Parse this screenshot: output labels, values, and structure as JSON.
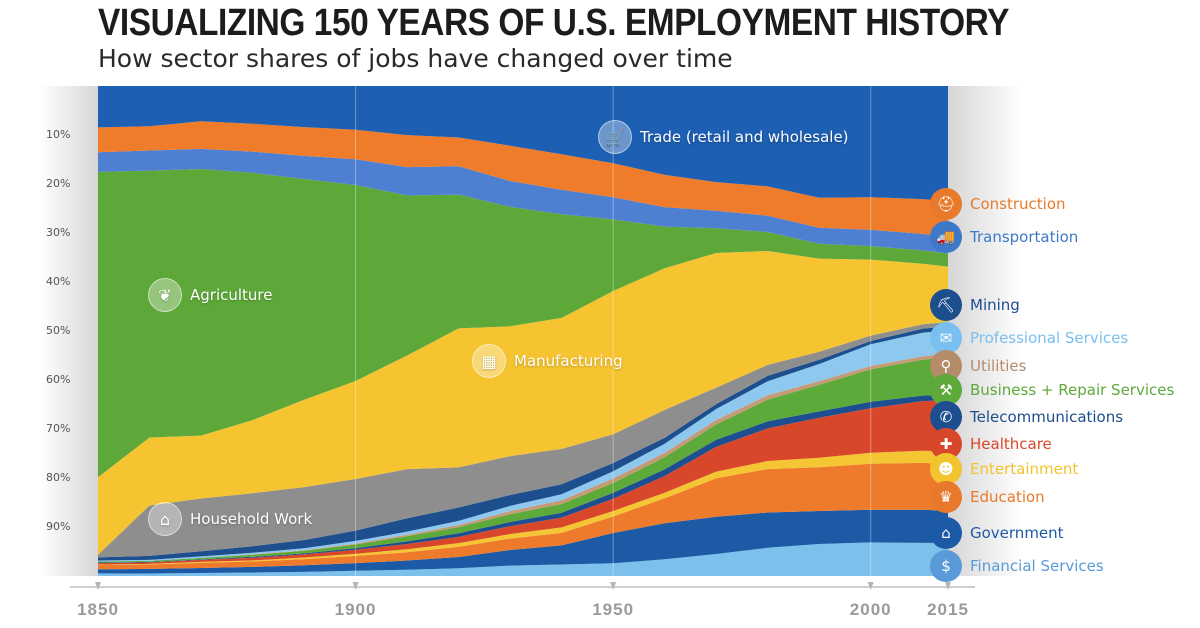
{
  "header": {
    "title": "VISUALIZING 150 YEARS OF U.S. EMPLOYMENT HISTORY",
    "subtitle": "How sector shares of jobs have changed over time"
  },
  "chart_data": {
    "type": "area",
    "stacked": "100%",
    "x": [
      1850,
      1860,
      1870,
      1880,
      1890,
      1900,
      1910,
      1920,
      1930,
      1940,
      1950,
      1960,
      1970,
      1980,
      1990,
      2000,
      2010,
      2015
    ],
    "x_tick_labels": [
      "1850",
      "1900",
      "1950",
      "2000",
      "2015"
    ],
    "y_tick_labels": [
      "10%",
      "20%",
      "30%",
      "40%",
      "50%",
      "60%",
      "70%",
      "80%",
      "90%"
    ],
    "ylim": [
      0,
      100
    ],
    "grid": false,
    "legend_position": "right",
    "series": [
      {
        "name": "Financial Services",
        "color": "#7cc0ec",
        "values": [
          0.5,
          0.5,
          0.6,
          0.7,
          0.8,
          1.0,
          1.2,
          1.5,
          2.0,
          2.1,
          2.3,
          3.0,
          4.0,
          5.2,
          6.0,
          6.2,
          6.0,
          6.0
        ]
      },
      {
        "name": "Government",
        "color": "#1d5aa6",
        "values": [
          0.8,
          0.9,
          1.0,
          1.1,
          1.3,
          1.5,
          1.8,
          2.2,
          3.0,
          3.5,
          5.5,
          6.5,
          6.8,
          6.5,
          6.2,
          6.0,
          6.0,
          5.8
        ]
      },
      {
        "name": "Education",
        "color": "#ee7b2c",
        "values": [
          0.8,
          0.9,
          1.0,
          1.1,
          1.2,
          1.4,
          1.6,
          2.0,
          2.2,
          2.3,
          3.0,
          4.5,
          7.0,
          8.0,
          8.2,
          8.5,
          8.5,
          8.5
        ]
      },
      {
        "name": "Entertainment",
        "color": "#f5c634",
        "values": [
          0.1,
          0.1,
          0.2,
          0.2,
          0.3,
          0.4,
          0.6,
          0.7,
          0.9,
          1.0,
          1.0,
          1.0,
          1.2,
          1.5,
          1.8,
          2.0,
          2.2,
          2.3
        ]
      },
      {
        "name": "Healthcare",
        "color": "#d9472b",
        "values": [
          0.3,
          0.3,
          0.4,
          0.5,
          0.6,
          0.8,
          1.0,
          1.2,
          1.5,
          1.8,
          2.2,
          3.0,
          4.5,
          6.0,
          7.5,
          8.2,
          9.0,
          9.2
        ]
      },
      {
        "name": "Telecommunications",
        "color": "#1d4e8f",
        "values": [
          0.1,
          0.1,
          0.1,
          0.2,
          0.2,
          0.3,
          0.5,
          0.7,
          0.8,
          0.9,
          1.1,
          1.2,
          1.3,
          1.3,
          1.2,
          1.2,
          1.0,
          1.0
        ]
      },
      {
        "name": "Business + Repair Services",
        "color": "#5da93a",
        "values": [
          0.2,
          0.2,
          0.3,
          0.4,
          0.5,
          0.7,
          1.0,
          1.2,
          1.5,
          1.6,
          1.8,
          2.2,
          2.8,
          4.0,
          5.0,
          6.0,
          6.5,
          6.8
        ]
      },
      {
        "name": "Utilities",
        "color": "#c69a76",
        "values": [
          0.0,
          0.0,
          0.0,
          0.1,
          0.1,
          0.2,
          0.3,
          0.4,
          0.6,
          0.7,
          0.8,
          0.8,
          0.8,
          0.8,
          0.7,
          0.6,
          0.6,
          0.6
        ]
      },
      {
        "name": "Professional Services",
        "color": "#8fc8ef",
        "values": [
          0.2,
          0.2,
          0.3,
          0.3,
          0.4,
          0.5,
          0.6,
          0.8,
          1.0,
          1.1,
          1.3,
          1.6,
          2.0,
          2.6,
          3.2,
          4.0,
          4.3,
          4.3
        ]
      },
      {
        "name": "Mining",
        "color": "#1d4f8f",
        "values": [
          0.6,
          0.8,
          1.0,
          1.3,
          1.6,
          2.0,
          2.6,
          2.6,
          2.1,
          1.8,
          1.5,
          1.1,
          0.9,
          1.0,
          0.8,
          0.6,
          0.7,
          0.7
        ]
      },
      {
        "name": "Household Work",
        "color": "#8e8e8e",
        "values": [
          0.5,
          10.0,
          10.5,
          10.5,
          10.3,
          10.0,
          9.5,
          7.8,
          7.5,
          6.5,
          5.2,
          5.0,
          3.0,
          2.0,
          1.5,
          1.0,
          0.8,
          0.8
        ]
      },
      {
        "name": "Manufacturing",
        "color": "#f6c431",
        "values": [
          15.0,
          13.5,
          12.5,
          14.5,
          17.0,
          19.0,
          22.0,
          27.0,
          25.0,
          24.0,
          26.0,
          25.5,
          24.5,
          21.0,
          17.5,
          14.0,
          11.0,
          10.0
        ]
      },
      {
        "name": "Agriculture",
        "color": "#5ea83a",
        "values": [
          59.0,
          53.0,
          53.0,
          49.0,
          43.0,
          38.0,
          31.0,
          26.0,
          23.0,
          19.0,
          13.0,
          7.5,
          4.5,
          3.5,
          2.8,
          2.5,
          2.4,
          2.4
        ]
      },
      {
        "name": "Transportation",
        "color": "#4f7fd1",
        "values": [
          3.8,
          4.0,
          4.0,
          4.2,
          4.5,
          5.0,
          5.5,
          5.5,
          5.0,
          4.5,
          4.0,
          3.5,
          3.2,
          3.0,
          3.0,
          3.0,
          3.0,
          3.0
        ]
      },
      {
        "name": "Construction",
        "color": "#ef7c2a",
        "values": [
          4.8,
          4.8,
          5.5,
          5.5,
          5.6,
          5.7,
          6.2,
          5.6,
          6.8,
          6.5,
          6.2,
          5.8,
          5.2,
          5.4,
          5.6,
          6.0,
          6.3,
          6.5
        ]
      },
      {
        "name": "Trade (retail and wholesale)",
        "color": "#1d5fb3",
        "values": [
          8.0,
          8.0,
          7.0,
          7.5,
          8.0,
          8.5,
          9.5,
          10.0,
          11.5,
          12.5,
          14.0,
          16.0,
          17.5,
          18.5,
          21.0,
          20.5,
          20.5,
          20.8
        ]
      }
    ]
  },
  "chart_labels": {
    "trade": "Trade (retail and wholesale)",
    "agriculture": "Agriculture",
    "manufacturing": "Manufacturing",
    "household": "Household Work"
  },
  "legend": [
    {
      "label": "Construction",
      "color": "#e87b2b",
      "icon": "construction-icon",
      "glyph": "⛑"
    },
    {
      "label": "Transportation",
      "color": "#3e78c9",
      "icon": "transportation-icon",
      "glyph": "🚚"
    },
    {
      "label": "Mining",
      "color": "#1d4f8f",
      "icon": "mining-icon",
      "glyph": "⛏"
    },
    {
      "label": "Professional Services",
      "color": "#79bff0",
      "icon": "professional-services-icon",
      "glyph": "✉"
    },
    {
      "label": "Utilities",
      "color": "#b58c6a",
      "icon": "utilities-icon",
      "glyph": "⚲"
    },
    {
      "label": "Business + Repair Services",
      "color": "#5da93a",
      "icon": "business-repair-icon",
      "glyph": "⚒"
    },
    {
      "label": "Telecommunications",
      "color": "#1d4e8f",
      "icon": "telecommunications-icon",
      "glyph": "✆"
    },
    {
      "label": "Healthcare",
      "color": "#d9472b",
      "icon": "healthcare-icon",
      "glyph": "✚"
    },
    {
      "label": "Entertainment",
      "color": "#f2c42e",
      "icon": "entertainment-icon",
      "glyph": "☻"
    },
    {
      "label": "Education",
      "color": "#e8792b",
      "icon": "education-icon",
      "glyph": "♛"
    },
    {
      "label": "Government",
      "color": "#1d5aa6",
      "icon": "government-icon",
      "glyph": "⌂"
    },
    {
      "label": "Financial Services",
      "color": "#5a9ad8",
      "icon": "financial-services-icon",
      "glyph": "$"
    }
  ]
}
